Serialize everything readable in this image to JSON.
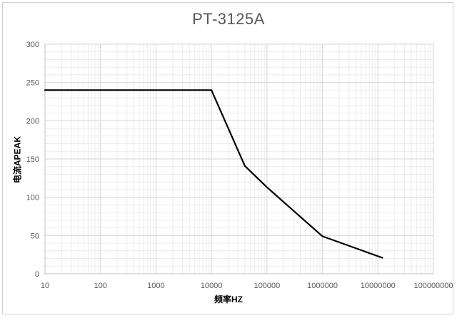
{
  "chart_data": {
    "type": "line",
    "title": "PT-3125A",
    "xlabel": "频率HZ",
    "ylabel": "电流APEAK",
    "x_scale": "log",
    "xlim": [
      10,
      100000000
    ],
    "ylim": [
      0,
      300
    ],
    "x_ticks": [
      "10",
      "100",
      "1000",
      "10000",
      "100000",
      "1000000",
      "10000000",
      "100000000"
    ],
    "y_ticks": [
      "0",
      "50",
      "100",
      "150",
      "200",
      "250",
      "300"
    ],
    "grid": true,
    "legend": "none",
    "series": [
      {
        "color": "#000000",
        "points": [
          {
            "x": 10,
            "y": 240
          },
          {
            "x": 10000,
            "y": 240
          },
          {
            "x": 40000,
            "y": 141
          },
          {
            "x": 100000,
            "y": 113
          },
          {
            "x": 1000000,
            "y": 49
          },
          {
            "x": 12000000,
            "y": 21
          }
        ]
      }
    ]
  },
  "colors": {
    "grid_major": "#d6d6d6",
    "grid_minor": "#ececec",
    "axis": "#bfbfbf",
    "tick_text": "#595959",
    "title_text": "#595959",
    "line": "#000000"
  }
}
